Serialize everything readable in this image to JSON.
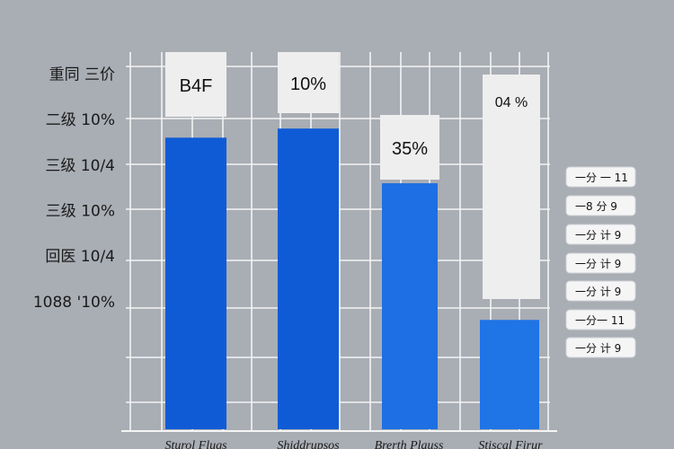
{
  "title": "",
  "chart_data": {
    "type": "bar",
    "title": "",
    "xlabel": "",
    "ylabel": "",
    "categories": [
      "Sturol Flugs",
      "Shiddrupsos",
      "Brerth Plauss",
      "Stiscal Firur"
    ],
    "values": [
      64,
      66,
      54,
      24
    ],
    "ylim": [
      0,
      82
    ],
    "ytick_values": [
      28,
      38,
      48,
      58,
      68,
      78
    ],
    "ytick_labels": [
      "1088 '10%",
      "回医 10/4",
      "三级 10%",
      "三级 10/4",
      "二级 10%",
      "重同 三价"
    ],
    "data_labels": [
      "B4F",
      "10%",
      "35%",
      "04 %"
    ],
    "legend_position": "right",
    "legend": [
      "一分 一 11",
      "一8 分 9",
      "一分 计 9",
      "一分 计 9",
      "一分 计 9",
      "一分一 11",
      "一分 计 9"
    ],
    "grid": true,
    "colors": [
      "#0f5bd6",
      "#0f5bd6",
      "#1e6fe3",
      "#1f74e6"
    ]
  }
}
